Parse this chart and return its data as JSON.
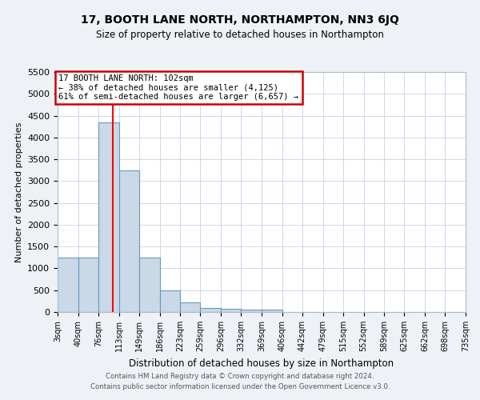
{
  "title1": "17, BOOTH LANE NORTH, NORTHAMPTON, NN3 6JQ",
  "title2": "Size of property relative to detached houses in Northampton",
  "xlabel": "Distribution of detached houses by size in Northampton",
  "ylabel": "Number of detached properties",
  "footer1": "Contains HM Land Registry data © Crown copyright and database right 2024.",
  "footer2": "Contains public sector information licensed under the Open Government Licence v3.0.",
  "bin_edges": [
    3,
    40,
    76,
    113,
    149,
    186,
    223,
    259,
    296,
    332,
    369,
    406,
    442,
    479,
    515,
    552,
    589,
    625,
    662,
    698,
    735
  ],
  "bar_heights": [
    1250,
    1250,
    4350,
    3250,
    1250,
    500,
    225,
    90,
    65,
    55,
    55,
    0,
    0,
    0,
    0,
    0,
    0,
    0,
    0,
    0
  ],
  "bar_color": "#c9d9e8",
  "bar_edge_color": "#6699bb",
  "grid_color": "#ccd9e8",
  "red_line_x": 102,
  "annotation_line1": "17 BOOTH LANE NORTH: 102sqm",
  "annotation_line2": "← 38% of detached houses are smaller (4,125)",
  "annotation_line3": "61% of semi-detached houses are larger (6,657) →",
  "annotation_box_color": "#ffffff",
  "annotation_box_edge": "#cc0000",
  "ylim": [
    0,
    5500
  ],
  "yticks": [
    0,
    500,
    1000,
    1500,
    2000,
    2500,
    3000,
    3500,
    4000,
    4500,
    5000,
    5500
  ],
  "tick_labels": [
    "3sqm",
    "40sqm",
    "76sqm",
    "113sqm",
    "149sqm",
    "186sqm",
    "223sqm",
    "259sqm",
    "296sqm",
    "332sqm",
    "369sqm",
    "406sqm",
    "442sqm",
    "479sqm",
    "515sqm",
    "552sqm",
    "589sqm",
    "625sqm",
    "662sqm",
    "698sqm",
    "735sqm"
  ],
  "background_color": "#eef2f7",
  "plot_bg_color": "#ffffff"
}
